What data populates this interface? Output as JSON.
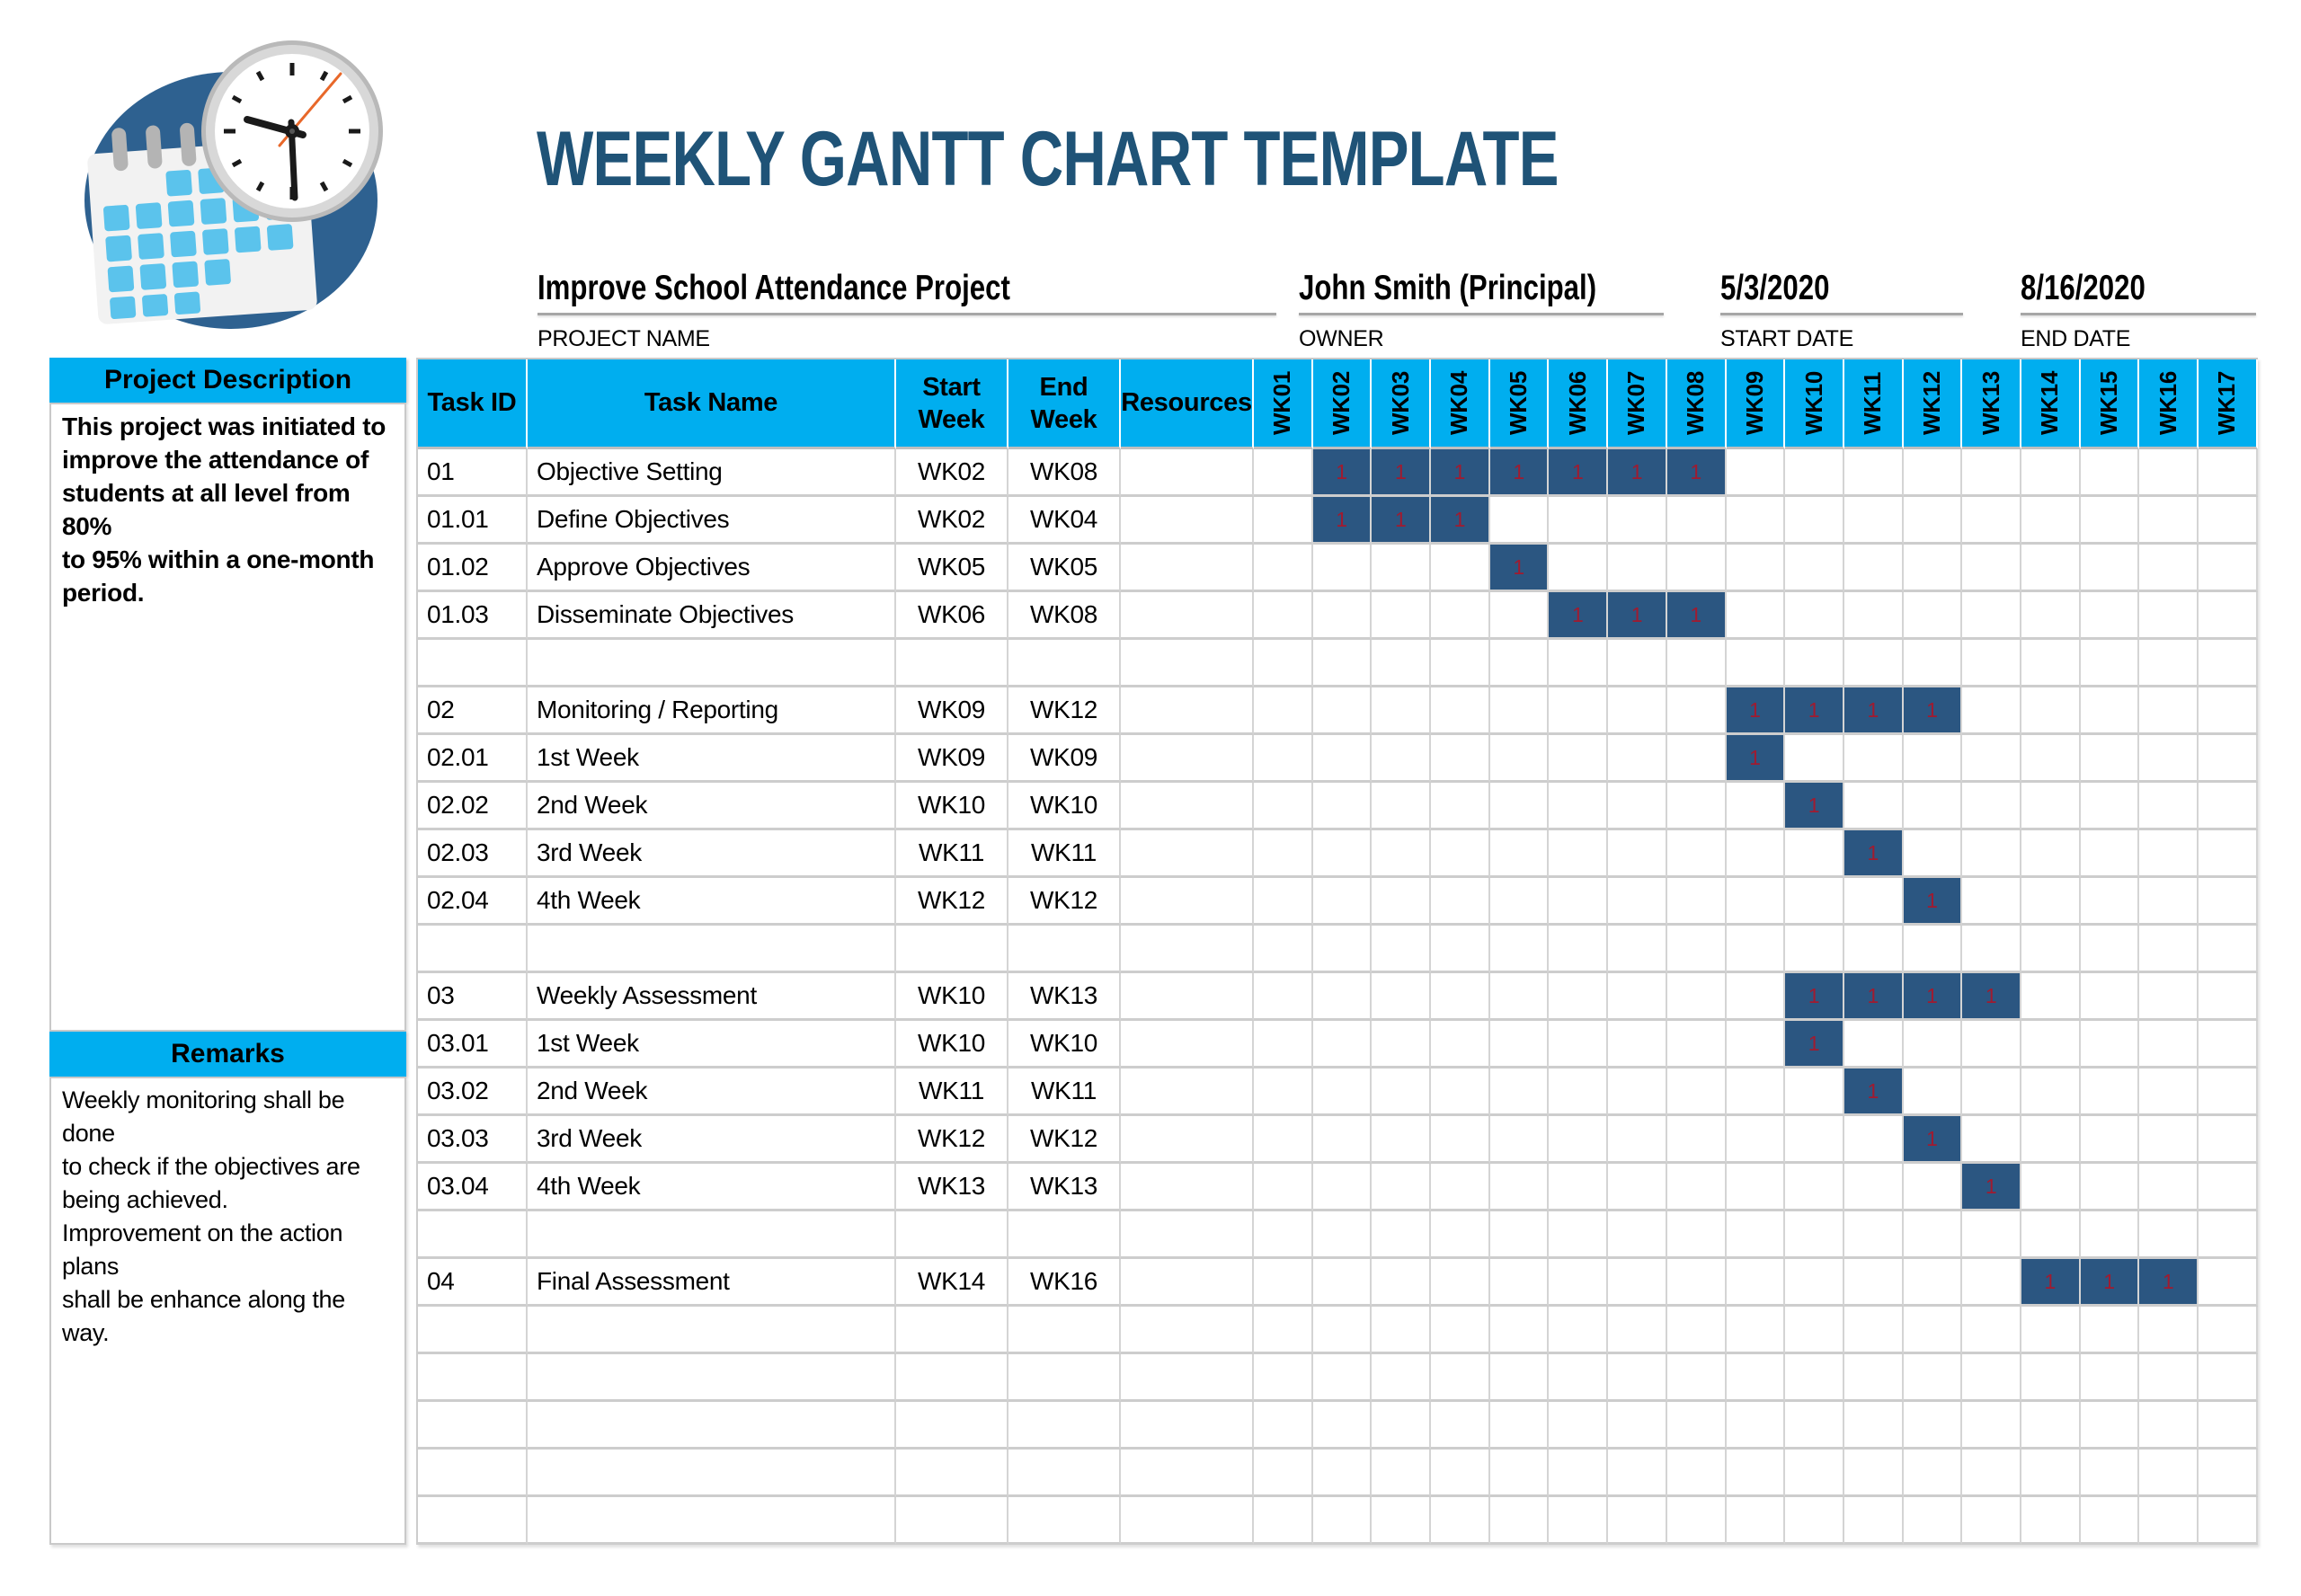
{
  "title": "WEEKLY GANTT CHART TEMPLATE",
  "project": {
    "name": "Improve School Attendance Project",
    "name_label": "PROJECT NAME",
    "owner": "John Smith (Principal)",
    "owner_label": "OWNER",
    "start_date": "5/3/2020",
    "start_date_label": "START DATE",
    "end_date": "8/16/2020",
    "end_date_label": "END DATE"
  },
  "sidebar": {
    "description_title": "Project Description",
    "description_text": "This project was initiated to\nimprove the attendance of\nstudents at all level from 80%\nto 95% within a one-month\nperiod.",
    "remarks_title": "Remarks",
    "remarks_text": "Weekly monitoring shall be done\nto check if the objectives are\nbeing achieved.\nImprovement on the action plans\nshall be enhance along the way."
  },
  "table": {
    "headers": {
      "task_id": "Task ID",
      "task_name": "Task Name",
      "start_week": "Start\nWeek",
      "end_week": "End\nWeek",
      "resources": "Resources"
    },
    "week_columns": [
      "WK01",
      "WK02",
      "WK03",
      "WK04",
      "WK05",
      "WK06",
      "WK07",
      "WK08",
      "WK09",
      "WK10",
      "WK11",
      "WK12",
      "WK13",
      "WK14",
      "WK15",
      "WK16",
      "WK17"
    ],
    "bar_cell_value": "1",
    "rows": [
      {
        "id": "01",
        "name": "Objective Setting",
        "start": "WK02",
        "end": "WK08",
        "resources": "",
        "bar": [
          2,
          8
        ]
      },
      {
        "id": "01.01",
        "name": "Define Objectives",
        "start": "WK02",
        "end": "WK04",
        "resources": "",
        "bar": [
          2,
          4
        ]
      },
      {
        "id": "01.02",
        "name": "Approve Objectives",
        "start": "WK05",
        "end": "WK05",
        "resources": "",
        "bar": [
          5,
          5
        ]
      },
      {
        "id": "01.03",
        "name": "Disseminate Objectives",
        "start": "WK06",
        "end": "WK08",
        "resources": "",
        "bar": [
          6,
          8
        ]
      },
      {
        "id": "",
        "name": "",
        "start": "",
        "end": "",
        "resources": "",
        "bar": null
      },
      {
        "id": "02",
        "name": "Monitoring / Reporting",
        "start": "WK09",
        "end": "WK12",
        "resources": "",
        "bar": [
          9,
          12
        ]
      },
      {
        "id": "02.01",
        "name": "1st Week",
        "start": "WK09",
        "end": "WK09",
        "resources": "",
        "bar": [
          9,
          9
        ]
      },
      {
        "id": "02.02",
        "name": "2nd Week",
        "start": "WK10",
        "end": "WK10",
        "resources": "",
        "bar": [
          10,
          10
        ]
      },
      {
        "id": "02.03",
        "name": "3rd Week",
        "start": "WK11",
        "end": "WK11",
        "resources": "",
        "bar": [
          11,
          11
        ]
      },
      {
        "id": "02.04",
        "name": "4th Week",
        "start": "WK12",
        "end": "WK12",
        "resources": "",
        "bar": [
          12,
          12
        ]
      },
      {
        "id": "",
        "name": "",
        "start": "",
        "end": "",
        "resources": "",
        "bar": null
      },
      {
        "id": "03",
        "name": "Weekly Assessment",
        "start": "WK10",
        "end": "WK13",
        "resources": "",
        "bar": [
          10,
          13
        ]
      },
      {
        "id": "03.01",
        "name": "1st Week",
        "start": "WK10",
        "end": "WK10",
        "resources": "",
        "bar": [
          10,
          10
        ]
      },
      {
        "id": "03.02",
        "name": "2nd Week",
        "start": "WK11",
        "end": "WK11",
        "resources": "",
        "bar": [
          11,
          11
        ]
      },
      {
        "id": "03.03",
        "name": "3rd Week",
        "start": "WK12",
        "end": "WK12",
        "resources": "",
        "bar": [
          12,
          12
        ]
      },
      {
        "id": "03.04",
        "name": "4th Week",
        "start": "WK13",
        "end": "WK13",
        "resources": "",
        "bar": [
          13,
          13
        ]
      },
      {
        "id": "",
        "name": "",
        "start": "",
        "end": "",
        "resources": "",
        "bar": null
      },
      {
        "id": "04",
        "name": "Final Assessment",
        "start": "WK14",
        "end": "WK16",
        "resources": "",
        "bar": [
          14,
          16
        ]
      },
      {
        "id": "",
        "name": "",
        "start": "",
        "end": "",
        "resources": "",
        "bar": null
      },
      {
        "id": "",
        "name": "",
        "start": "",
        "end": "",
        "resources": "",
        "bar": null
      },
      {
        "id": "",
        "name": "",
        "start": "",
        "end": "",
        "resources": "",
        "bar": null
      },
      {
        "id": "",
        "name": "",
        "start": "",
        "end": "",
        "resources": "",
        "bar": null
      },
      {
        "id": "",
        "name": "",
        "start": "",
        "end": "",
        "resources": "",
        "bar": null
      }
    ]
  },
  "colors": {
    "header_cyan": "#00AEEF",
    "bar_navy": "#2B5681",
    "bar_value_red": "#A01B30",
    "title_blue": "#1F5377",
    "grid_line": "#CDCDCD",
    "underline_gray": "#A6A6A6",
    "logo_circle_blue": "#2E6190",
    "logo_square_blue": "#5BC3EC"
  },
  "icons": {
    "logo": "calendar-clock-logo"
  },
  "chart_data": {
    "type": "gantt",
    "title": "WEEKLY GANTT CHART TEMPLATE",
    "project_name": "Improve School Attendance Project",
    "owner": "John Smith (Principal)",
    "start_date": "5/3/2020",
    "end_date": "8/16/2020",
    "x_categories": [
      "WK01",
      "WK02",
      "WK03",
      "WK04",
      "WK05",
      "WK06",
      "WK07",
      "WK08",
      "WK09",
      "WK10",
      "WK11",
      "WK12",
      "WK13",
      "WK14",
      "WK15",
      "WK16",
      "WK17"
    ],
    "cell_marker": "1",
    "legend_position": "none",
    "tasks": [
      {
        "id": "01",
        "name": "Objective Setting",
        "start_week": "WK02",
        "end_week": "WK08"
      },
      {
        "id": "01.01",
        "name": "Define Objectives",
        "start_week": "WK02",
        "end_week": "WK04"
      },
      {
        "id": "01.02",
        "name": "Approve Objectives",
        "start_week": "WK05",
        "end_week": "WK05"
      },
      {
        "id": "01.03",
        "name": "Disseminate Objectives",
        "start_week": "WK06",
        "end_week": "WK08"
      },
      {
        "id": "02",
        "name": "Monitoring / Reporting",
        "start_week": "WK09",
        "end_week": "WK12"
      },
      {
        "id": "02.01",
        "name": "1st Week",
        "start_week": "WK09",
        "end_week": "WK09"
      },
      {
        "id": "02.02",
        "name": "2nd Week",
        "start_week": "WK10",
        "end_week": "WK10"
      },
      {
        "id": "02.03",
        "name": "3rd Week",
        "start_week": "WK11",
        "end_week": "WK11"
      },
      {
        "id": "02.04",
        "name": "4th Week",
        "start_week": "WK12",
        "end_week": "WK12"
      },
      {
        "id": "03",
        "name": "Weekly Assessment",
        "start_week": "WK10",
        "end_week": "WK13"
      },
      {
        "id": "03.01",
        "name": "1st Week",
        "start_week": "WK10",
        "end_week": "WK10"
      },
      {
        "id": "03.02",
        "name": "2nd Week",
        "start_week": "WK11",
        "end_week": "WK11"
      },
      {
        "id": "03.03",
        "name": "3rd Week",
        "start_week": "WK12",
        "end_week": "WK12"
      },
      {
        "id": "03.04",
        "name": "4th Week",
        "start_week": "WK13",
        "end_week": "WK13"
      },
      {
        "id": "04",
        "name": "Final Assessment",
        "start_week": "WK14",
        "end_week": "WK16"
      }
    ]
  }
}
